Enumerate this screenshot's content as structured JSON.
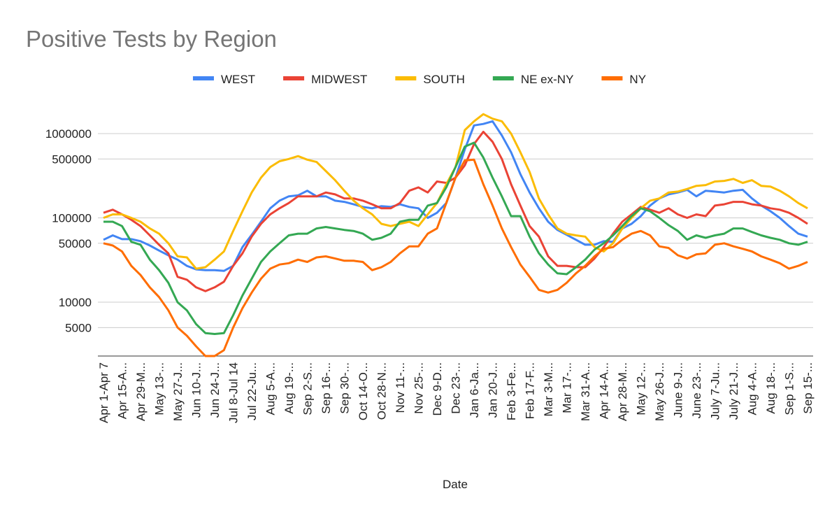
{
  "chart_data": {
    "type": "line",
    "title": "Positive Tests by Region",
    "x_label": "Date",
    "log_scale": true,
    "grid": true,
    "legend": "top",
    "categories": [
      "Apr 1-Apr 7",
      null,
      "Apr 15-A...",
      null,
      "Apr 29-M...",
      null,
      "May 13-...",
      null,
      "May 27-J...",
      null,
      "Jun 10-J...",
      null,
      "Jun 24-J...",
      null,
      "Jul 8-Jul 14",
      null,
      "Jul 22-Ju...",
      null,
      "Aug 5-A...",
      null,
      "Aug 19-...",
      null,
      "Sep 2-S...",
      null,
      "Sep 16-...",
      null,
      "Sep 30-...",
      null,
      "Oct 14-O...",
      null,
      "Oct 28-N...",
      null,
      "Nov 11-...",
      null,
      "Nov 25-...",
      null,
      "Dec 9-D...",
      null,
      "Dec 23-...",
      null,
      "Jan 6-Ja...",
      null,
      "Jan 20-J...",
      null,
      "Feb 3-Fe...",
      null,
      "Feb 17-F...",
      null,
      "Mar 3-M...",
      null,
      "Mar 17-...",
      null,
      "Mar 31-A...",
      null,
      "Apr 14-A...",
      null,
      "Apr 28-M...",
      null,
      "May 12-...",
      null,
      "May 26-J...",
      null,
      "June 9-J...",
      null,
      "June 23-...",
      null,
      "July 7-Ju...",
      null,
      "July 21-J...",
      null,
      "Aug 4-A...",
      null,
      "Aug 18-...",
      null,
      "Sep 1-S...",
      null,
      "Sep 15-..."
    ],
    "ylim": [
      2300,
      2500000
    ],
    "yticks": [
      5000,
      10000,
      50000,
      100000,
      500000,
      1000000
    ],
    "series": [
      {
        "name": "WEST",
        "color": "#4285f4",
        "values": [
          55000,
          62000,
          56000,
          56000,
          53000,
          47000,
          41000,
          36000,
          32000,
          27000,
          24500,
          24000,
          24000,
          23500,
          27000,
          45000,
          63000,
          90000,
          130000,
          160000,
          180000,
          185000,
          210000,
          180000,
          180000,
          160000,
          155000,
          145000,
          135000,
          130000,
          138000,
          135000,
          145000,
          135000,
          130000,
          100000,
          115000,
          150000,
          300000,
          650000,
          1250000,
          1300000,
          1400000,
          950000,
          600000,
          330000,
          200000,
          130000,
          90000,
          72000,
          63000,
          55000,
          48000,
          48000,
          53000,
          52000,
          75000,
          85000,
          105000,
          140000,
          170000,
          190000,
          200000,
          215000,
          180000,
          210000,
          205000,
          200000,
          210000,
          215000,
          170000,
          140000,
          120000,
          100000,
          80000,
          65000,
          60000
        ]
      },
      {
        "name": "MIDWEST",
        "color": "#ea4335",
        "values": [
          115000,
          125000,
          110000,
          95000,
          80000,
          62000,
          48000,
          38000,
          20000,
          18500,
          15000,
          13500,
          15000,
          17500,
          27000,
          38000,
          60000,
          85000,
          110000,
          130000,
          150000,
          180000,
          180000,
          180000,
          200000,
          190000,
          170000,
          170000,
          160000,
          145000,
          130000,
          130000,
          150000,
          210000,
          230000,
          200000,
          270000,
          260000,
          300000,
          420000,
          750000,
          1050000,
          800000,
          500000,
          250000,
          140000,
          80000,
          60000,
          35000,
          27000,
          27000,
          26000,
          26000,
          33000,
          45000,
          65000,
          90000,
          110000,
          135000,
          125000,
          115000,
          130000,
          110000,
          100000,
          110000,
          105000,
          140000,
          145000,
          155000,
          155000,
          145000,
          140000,
          130000,
          125000,
          115000,
          100000,
          85000
        ]
      },
      {
        "name": "SOUTH",
        "color": "#fbbc04",
        "values": [
          100000,
          110000,
          110000,
          100000,
          90000,
          75000,
          65000,
          50000,
          35000,
          34000,
          25000,
          26000,
          32000,
          40000,
          70000,
          120000,
          200000,
          300000,
          400000,
          470000,
          500000,
          540000,
          490000,
          460000,
          360000,
          280000,
          210000,
          160000,
          130000,
          110000,
          85000,
          80000,
          85000,
          90000,
          80000,
          110000,
          150000,
          250000,
          400000,
          1100000,
          1400000,
          1700000,
          1500000,
          1400000,
          1000000,
          600000,
          350000,
          170000,
          110000,
          75000,
          65000,
          62000,
          60000,
          45000,
          40000,
          50000,
          75000,
          100000,
          130000,
          160000,
          170000,
          200000,
          205000,
          220000,
          240000,
          245000,
          270000,
          275000,
          290000,
          260000,
          280000,
          240000,
          235000,
          210000,
          180000,
          150000,
          130000
        ]
      },
      {
        "name": "NE ex-NY",
        "color": "#34a853",
        "values": [
          90000,
          90000,
          80000,
          52000,
          48000,
          32000,
          24000,
          17000,
          10000,
          8000,
          5500,
          4300,
          4200,
          4300,
          7000,
          12000,
          19000,
          30000,
          40000,
          50000,
          62000,
          65000,
          65000,
          75000,
          78000,
          75000,
          72000,
          70000,
          65000,
          55000,
          58000,
          65000,
          90000,
          95000,
          95000,
          140000,
          150000,
          230000,
          400000,
          700000,
          780000,
          520000,
          300000,
          180000,
          105000,
          105000,
          60000,
          38000,
          28000,
          22000,
          21500,
          26000,
          32000,
          42000,
          50000,
          62000,
          80000,
          105000,
          130000,
          120000,
          100000,
          82000,
          70000,
          55000,
          62000,
          58000,
          62000,
          65000,
          75000,
          75000,
          68000,
          62000,
          58000,
          55000,
          50000,
          48000,
          52000
        ]
      },
      {
        "name": "NY",
        "color": "#ff6d01",
        "values": [
          50000,
          47000,
          40000,
          27000,
          21000,
          15000,
          11500,
          8000,
          5000,
          4000,
          3000,
          2300,
          2300,
          2700,
          5000,
          8500,
          13000,
          19000,
          25000,
          28000,
          29000,
          32000,
          30000,
          34000,
          35000,
          33000,
          31000,
          31000,
          30000,
          24000,
          26000,
          30000,
          38000,
          46000,
          46000,
          65000,
          75000,
          150000,
          300000,
          480000,
          490000,
          250000,
          140000,
          75000,
          45000,
          28000,
          20000,
          14000,
          13000,
          14000,
          17000,
          22000,
          27000,
          35000,
          43000,
          45000,
          55000,
          65000,
          70000,
          62000,
          46000,
          44000,
          36000,
          33000,
          37000,
          38000,
          48000,
          50000,
          46000,
          43000,
          40000,
          35000,
          32000,
          29000,
          25000,
          27000,
          30000
        ]
      }
    ]
  }
}
